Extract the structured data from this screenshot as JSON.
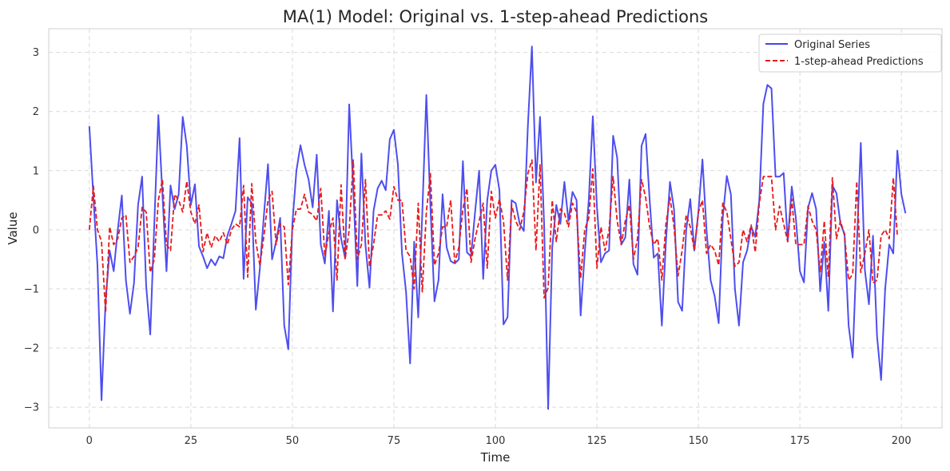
{
  "chart_data": {
    "type": "line",
    "title": "MA(1) Model: Original vs. 1-step-ahead Predictions",
    "xlabel": "Time",
    "ylabel": "Value",
    "xlim": [
      -10,
      210
    ],
    "ylim": [
      -3.35,
      3.4
    ],
    "xticks": [
      0,
      25,
      50,
      75,
      100,
      125,
      150,
      175,
      200
    ],
    "yticks": [
      -3,
      -2,
      -1,
      0,
      1,
      2,
      3
    ],
    "xtick_labels": [
      "0",
      "25",
      "50",
      "75",
      "100",
      "125",
      "150",
      "175",
      "200"
    ],
    "ytick_labels": [
      "−3",
      "−2",
      "−1",
      "0",
      "1",
      "2",
      "3"
    ],
    "grid": true,
    "legend_position": "top-right",
    "series": [
      {
        "name": "Original Series",
        "color": "#4444ee",
        "style": "solid",
        "values": [
          1.75,
          0.55,
          -0.6,
          -2.88,
          -1.2,
          -0.35,
          -0.7,
          0.0,
          0.58,
          -0.85,
          -1.42,
          -0.9,
          0.42,
          0.9,
          -0.95,
          -1.77,
          0.1,
          1.94,
          0.6,
          -0.7,
          0.75,
          0.35,
          0.6,
          1.91,
          1.42,
          0.42,
          0.77,
          -0.28,
          -0.45,
          -0.65,
          -0.5,
          -0.6,
          -0.45,
          -0.48,
          -0.1,
          0.1,
          0.32,
          1.55,
          -0.83,
          0.55,
          0.45,
          -1.35,
          -0.65,
          0.25,
          1.11,
          -0.5,
          -0.2,
          0.2,
          -1.62,
          -2.02,
          0.1,
          1.0,
          1.43,
          1.1,
          0.85,
          0.38,
          1.27,
          -0.25,
          -0.57,
          0.32,
          -1.38,
          0.5,
          -0.15,
          -0.48,
          2.12,
          0.7,
          -0.95,
          1.29,
          -0.25,
          -0.98,
          0.32,
          0.7,
          0.83,
          0.67,
          1.53,
          1.69,
          1.1,
          -0.4,
          -1.05,
          -2.26,
          -0.2,
          -1.48,
          0.28,
          2.28,
          0.4,
          -1.21,
          -0.85,
          0.6,
          -0.3,
          -0.53,
          -0.57,
          -0.5,
          1.16,
          -0.38,
          -0.45,
          0.3,
          1.0,
          -0.83,
          0.5,
          1.0,
          1.1,
          0.67,
          -1.6,
          -1.48,
          0.5,
          0.45,
          0.1,
          -0.02,
          1.75,
          3.1,
          0.8,
          1.91,
          0.1,
          -3.03,
          -0.3,
          0.42,
          0.1,
          0.81,
          0.15,
          0.64,
          0.5,
          -1.45,
          -0.4,
          0.5,
          1.92,
          0.4,
          -0.55,
          -0.4,
          -0.35,
          1.59,
          1.22,
          -0.25,
          -0.13,
          0.85,
          -0.58,
          -0.76,
          1.42,
          1.62,
          0.5,
          -0.47,
          -0.4,
          -1.62,
          -0.2,
          0.81,
          0.35,
          -1.22,
          -1.37,
          0.0,
          0.52,
          -0.35,
          0.3,
          1.19,
          0.0,
          -0.85,
          -1.12,
          -1.58,
          0.2,
          0.91,
          0.6,
          -1.0,
          -1.62,
          -0.55,
          -0.35,
          0.05,
          -0.12,
          0.5,
          2.13,
          2.45,
          2.39,
          0.9,
          0.9,
          0.96,
          -0.2,
          0.73,
          0.2,
          -0.7,
          -0.89,
          0.37,
          0.62,
          0.35,
          -1.04,
          -0.2,
          -1.37,
          0.75,
          0.62,
          0.1,
          -0.07,
          -1.62,
          -2.16,
          -0.3,
          1.47,
          -0.68,
          -1.26,
          -0.1,
          -1.8,
          -2.54,
          -1.0,
          -0.25,
          -0.4,
          1.34,
          0.6,
          0.28
        ]
      },
      {
        "name": "1-step-ahead Predictions",
        "color": "#e81a1a",
        "style": "dashed",
        "values": [
          0.0,
          0.74,
          0.0,
          -0.2,
          -1.4,
          0.05,
          -0.25,
          -0.15,
          0.2,
          0.25,
          -0.55,
          -0.45,
          -0.3,
          0.38,
          0.3,
          -0.72,
          -0.5,
          0.5,
          0.85,
          -0.25,
          -0.35,
          0.6,
          0.5,
          0.3,
          0.82,
          0.3,
          0.1,
          0.42,
          -0.37,
          -0.05,
          -0.3,
          -0.1,
          -0.2,
          -0.05,
          -0.25,
          0.0,
          0.1,
          0.05,
          0.75,
          -0.8,
          0.78,
          -0.2,
          -0.6,
          -0.1,
          0.5,
          0.65,
          -0.25,
          0.1,
          0.05,
          -0.93,
          0.0,
          0.35,
          0.35,
          0.6,
          0.3,
          0.26,
          0.15,
          0.7,
          -0.45,
          -0.05,
          0.2,
          -0.85,
          0.76,
          -0.5,
          0.0,
          1.18,
          -0.5,
          -0.25,
          0.85,
          -0.62,
          -0.25,
          0.25,
          0.25,
          0.32,
          0.18,
          0.73,
          0.5,
          0.5,
          -0.35,
          -0.45,
          -1.0,
          0.45,
          -1.05,
          0.3,
          0.95,
          -0.6,
          -0.4,
          0.05,
          0.05,
          0.5,
          -0.55,
          -0.3,
          0.35,
          0.7,
          -0.55,
          -0.15,
          0.15,
          0.45,
          -0.65,
          0.65,
          0.2,
          0.52,
          0.15,
          -0.85,
          0.42,
          0.15,
          0.0,
          0.3,
          0.95,
          1.18,
          -0.35,
          1.1,
          -1.15,
          -0.98,
          0.5,
          -0.2,
          0.35,
          0.28,
          0.05,
          0.45,
          0.3,
          -0.82,
          0.0,
          0.2,
          1.03,
          -0.65,
          0.05,
          -0.35,
          0.0,
          0.9,
          0.15,
          -0.25,
          0.15,
          0.42,
          -0.5,
          -0.15,
          0.85,
          0.55,
          0.05,
          -0.25,
          -0.15,
          -0.85,
          0.1,
          0.55,
          0.05,
          -0.78,
          -0.35,
          0.25,
          0.05,
          -0.35,
          0.3,
          0.5,
          -0.4,
          -0.25,
          -0.35,
          -0.6,
          0.45,
          0.3,
          -0.15,
          -0.62,
          -0.55,
          0.0,
          -0.2,
          0.08,
          -0.38,
          0.45,
          0.9,
          0.9,
          0.9,
          0.0,
          0.4,
          0.1,
          -0.2,
          0.52,
          -0.25,
          -0.25,
          -0.25,
          0.4,
          0.15,
          0.0,
          -0.72,
          0.15,
          -0.8,
          0.88,
          -0.15,
          0.15,
          -0.1,
          -0.85,
          -0.75,
          0.82,
          -0.72,
          -0.4,
          0.0,
          -0.9,
          -0.85,
          -0.1,
          0.0,
          -0.15,
          0.88,
          -0.1
        ]
      }
    ]
  }
}
